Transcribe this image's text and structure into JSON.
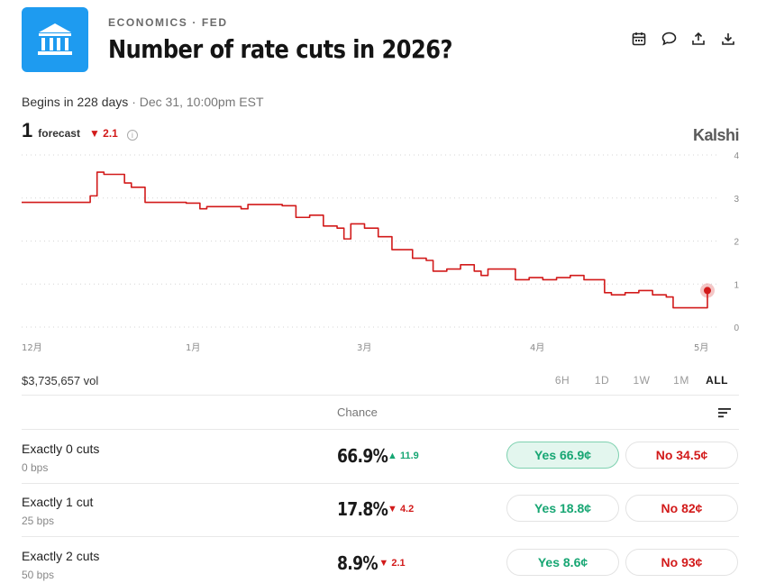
{
  "header": {
    "category": "ECONOMICS · FED",
    "title": "Number of rate cuts in 2026?",
    "actions": [
      "calendar-icon",
      "comment-icon",
      "share-icon",
      "download-icon"
    ]
  },
  "status": {
    "begins": "Begins in 228 days",
    "date": " · Dec 31, 10:00pm EST"
  },
  "forecast": {
    "value": "1",
    "label": "forecast",
    "change": "▼ 2.1",
    "info": "i"
  },
  "brand": "Kalshi",
  "chart_data": {
    "type": "line",
    "color": "#d21a1a",
    "ylim": [
      0,
      4
    ],
    "yticks": [
      "0",
      "1",
      "2",
      "3",
      "4"
    ],
    "xticks": [
      "12月",
      "1月",
      "3月",
      "4月",
      "5月"
    ],
    "grid": true,
    "series": [
      {
        "x": [
          0,
          6,
          10,
          11,
          12,
          15,
          16,
          18,
          24,
          26,
          27,
          32,
          33,
          38,
          40,
          42,
          44,
          46,
          47,
          48,
          50,
          52,
          53,
          54,
          57,
          59,
          60,
          62,
          64,
          66,
          67,
          68,
          72,
          74,
          76,
          78,
          80,
          82,
          84,
          85,
          86,
          88,
          90,
          92,
          94,
          95,
          96,
          98,
          100
        ],
        "values": [
          2.9,
          2.9,
          3.05,
          3.6,
          3.55,
          3.35,
          3.25,
          2.9,
          2.88,
          2.75,
          2.8,
          2.75,
          2.85,
          2.82,
          2.55,
          2.6,
          2.35,
          2.3,
          2.05,
          2.4,
          2.3,
          2.1,
          2.1,
          1.8,
          1.6,
          1.55,
          1.3,
          1.35,
          1.45,
          1.3,
          1.2,
          1.35,
          1.1,
          1.15,
          1.1,
          1.15,
          1.2,
          1.1,
          1.1,
          0.8,
          0.75,
          0.8,
          0.85,
          0.75,
          0.7,
          0.45,
          0.45,
          0.45,
          0.85
        ]
      }
    ]
  },
  "volume": "$3,735,657 vol",
  "ranges": [
    "6H",
    "1D",
    "1W",
    "1M",
    "ALL"
  ],
  "active_range": "ALL",
  "table": {
    "header": "Chance",
    "rows": [
      {
        "name": "Exactly 0 cuts",
        "sub": "0 bps",
        "pct": "66.9%",
        "delta": "▲ 11.9",
        "dir": "up",
        "yes": "Yes 66.9¢",
        "no": "No 34.5¢",
        "selected": true
      },
      {
        "name": "Exactly 1 cut",
        "sub": "25 bps",
        "pct": "17.8%",
        "delta": "▼ 4.2",
        "dir": "down",
        "yes": "Yes 18.8¢",
        "no": "No 82¢",
        "selected": false
      },
      {
        "name": "Exactly 2 cuts",
        "sub": "50 bps",
        "pct": "8.9%",
        "delta": "▼ 2.1",
        "dir": "down",
        "yes": "Yes 8.6¢",
        "no": "No 93¢",
        "selected": false
      }
    ]
  }
}
